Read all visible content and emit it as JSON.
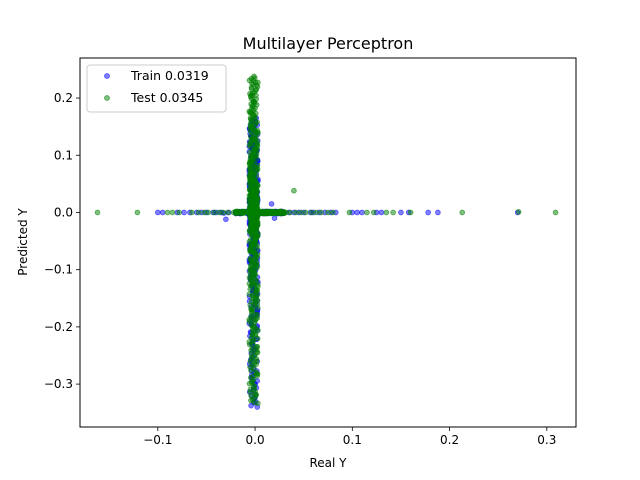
{
  "chart_data": {
    "type": "scatter",
    "title": "Multilayer Perceptron",
    "xlabel": "Real Y",
    "ylabel": "Predicted Y",
    "xlim": [
      -0.18,
      0.33
    ],
    "ylim": [
      -0.375,
      0.27
    ],
    "xticks": [
      -0.1,
      0.0,
      0.1,
      0.2,
      0.3
    ],
    "xtick_labels": [
      "−0.1",
      "0.0",
      "0.1",
      "0.2",
      "0.3"
    ],
    "yticks": [
      -0.3,
      -0.2,
      -0.1,
      0.0,
      0.1,
      0.2
    ],
    "ytick_labels": [
      "−0.3",
      "−0.2",
      "−0.1",
      "0.0",
      "0.1",
      "0.2"
    ],
    "grid": false,
    "legend_position": "top-left",
    "series": [
      {
        "name": "Train 0.0319",
        "color": "#0000ff",
        "horizontal_points": [
          [
            -0.1,
            0.0
          ],
          [
            -0.095,
            0.0
          ],
          [
            -0.08,
            0.0
          ],
          [
            -0.073,
            0.0
          ],
          [
            -0.067,
            0.0
          ],
          [
            -0.06,
            0.0
          ],
          [
            -0.055,
            0.0
          ],
          [
            -0.05,
            0.0
          ],
          [
            -0.043,
            0.0
          ],
          [
            -0.04,
            0.0
          ],
          [
            -0.035,
            0.0
          ],
          [
            -0.032,
            -0.001
          ],
          [
            -0.03,
            -0.012
          ],
          [
            -0.027,
            0.0
          ],
          [
            -0.02,
            0.0
          ],
          [
            -0.018,
            0.0
          ],
          [
            -0.015,
            0.0
          ],
          [
            0.013,
            0.0
          ],
          [
            0.015,
            0.0
          ],
          [
            0.017,
            0.015
          ],
          [
            0.02,
            -0.01
          ],
          [
            0.022,
            0.0
          ],
          [
            0.025,
            0.0
          ],
          [
            0.03,
            0.0
          ],
          [
            0.035,
            0.0
          ],
          [
            0.04,
            0.0
          ],
          [
            0.045,
            0.0
          ],
          [
            0.05,
            0.0
          ],
          [
            0.057,
            0.0
          ],
          [
            0.06,
            0.0
          ],
          [
            0.066,
            0.0
          ],
          [
            0.072,
            0.0
          ],
          [
            0.078,
            0.0
          ],
          [
            0.083,
            0.0
          ],
          [
            0.1,
            0.0
          ],
          [
            0.105,
            0.0
          ],
          [
            0.11,
            0.0
          ],
          [
            0.125,
            0.0
          ],
          [
            0.13,
            0.0
          ],
          [
            0.15,
            0.0
          ],
          [
            0.158,
            0.0
          ],
          [
            0.178,
            0.0
          ],
          [
            0.188,
            0.0
          ],
          [
            0.27,
            0.0
          ]
        ],
        "vertical_y_range": [
          -0.34,
          0.165
        ],
        "vertical_x_range": [
          -0.006,
          0.003
        ]
      },
      {
        "name": "Test 0.0345",
        "color": "#008000",
        "horizontal_points": [
          [
            -0.162,
            0.0
          ],
          [
            -0.121,
            0.0
          ],
          [
            -0.09,
            0.0
          ],
          [
            -0.085,
            0.0
          ],
          [
            -0.078,
            0.0
          ],
          [
            -0.065,
            0.0
          ],
          [
            -0.058,
            0.0
          ],
          [
            -0.052,
            0.0
          ],
          [
            -0.048,
            0.0
          ],
          [
            -0.042,
            0.0
          ],
          [
            -0.037,
            0.0
          ],
          [
            -0.033,
            0.0
          ],
          [
            -0.028,
            0.0
          ],
          [
            -0.022,
            0.0
          ],
          [
            0.008,
            0.0
          ],
          [
            0.011,
            0.0
          ],
          [
            0.014,
            0.0
          ],
          [
            0.018,
            0.0
          ],
          [
            0.023,
            0.0
          ],
          [
            0.027,
            0.0
          ],
          [
            0.032,
            0.0
          ],
          [
            0.036,
            0.0
          ],
          [
            0.04,
            0.038
          ],
          [
            0.042,
            0.0
          ],
          [
            0.047,
            0.0
          ],
          [
            0.052,
            0.0
          ],
          [
            0.058,
            0.0
          ],
          [
            0.063,
            0.0
          ],
          [
            0.068,
            0.0
          ],
          [
            0.075,
            0.0
          ],
          [
            0.08,
            0.0
          ],
          [
            0.097,
            0.0
          ],
          [
            0.115,
            0.0
          ],
          [
            0.122,
            0.0
          ],
          [
            0.135,
            0.0
          ],
          [
            0.142,
            0.0
          ],
          [
            0.16,
            0.0
          ],
          [
            0.213,
            0.0
          ],
          [
            0.271,
            0.001
          ],
          [
            0.309,
            0.0
          ]
        ],
        "vertical_y_range": [
          -0.335,
          0.238
        ],
        "vertical_x_range": [
          -0.006,
          0.003
        ]
      }
    ]
  }
}
